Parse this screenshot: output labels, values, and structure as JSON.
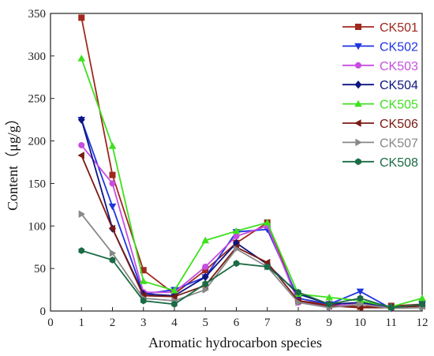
{
  "chart_data": {
    "type": "line",
    "xlabel": "Aromatic hydrocarbon species",
    "ylabel": "Content（μg/g）",
    "xlim": [
      0,
      12
    ],
    "ylim": [
      0,
      350
    ],
    "xticks": [
      0,
      1,
      2,
      3,
      4,
      5,
      6,
      7,
      8,
      9,
      10,
      11,
      12
    ],
    "yticks": [
      0,
      50,
      100,
      150,
      200,
      250,
      300,
      350
    ],
    "x": [
      1,
      2,
      3,
      4,
      5,
      6,
      7,
      8,
      9,
      10,
      11,
      12
    ],
    "legend_position": "top-right",
    "grid": false,
    "series": [
      {
        "name": "CK501",
        "color": "#a0281e",
        "marker": "square",
        "values": [
          345,
          160,
          48,
          20,
          48,
          80,
          104,
          12,
          8,
          5,
          6,
          8
        ]
      },
      {
        "name": "CK502",
        "color": "#1f35e0",
        "marker": "triangle-down",
        "values": [
          225,
          123,
          20,
          25,
          40,
          93,
          96,
          15,
          8,
          23,
          3,
          8
        ]
      },
      {
        "name": "CK503",
        "color": "#c74de0",
        "marker": "circle",
        "values": [
          195,
          150,
          22,
          22,
          52,
          88,
          100,
          10,
          5,
          10,
          4,
          6
        ]
      },
      {
        "name": "CK504",
        "color": "#0d1580",
        "marker": "diamond",
        "values": [
          225,
          97,
          20,
          18,
          40,
          80,
          55,
          20,
          8,
          10,
          5,
          6
        ]
      },
      {
        "name": "CK505",
        "color": "#3ee01e",
        "marker": "triangle-up",
        "values": [
          297,
          194,
          35,
          24,
          83,
          94,
          104,
          20,
          16,
          12,
          5,
          15
        ]
      },
      {
        "name": "CK506",
        "color": "#7a1a12",
        "marker": "triangle-left",
        "values": [
          183,
          97,
          18,
          17,
          30,
          75,
          57,
          12,
          6,
          4,
          4,
          6
        ]
      },
      {
        "name": "CK507",
        "color": "#888888",
        "marker": "triangle-right",
        "values": [
          114,
          68,
          15,
          12,
          25,
          73,
          52,
          10,
          4,
          8,
          3,
          4
        ]
      },
      {
        "name": "CK508",
        "color": "#1b6b45",
        "marker": "hexagon",
        "values": [
          71,
          60,
          12,
          8,
          32,
          56,
          52,
          22,
          8,
          15,
          4,
          8
        ]
      }
    ]
  }
}
